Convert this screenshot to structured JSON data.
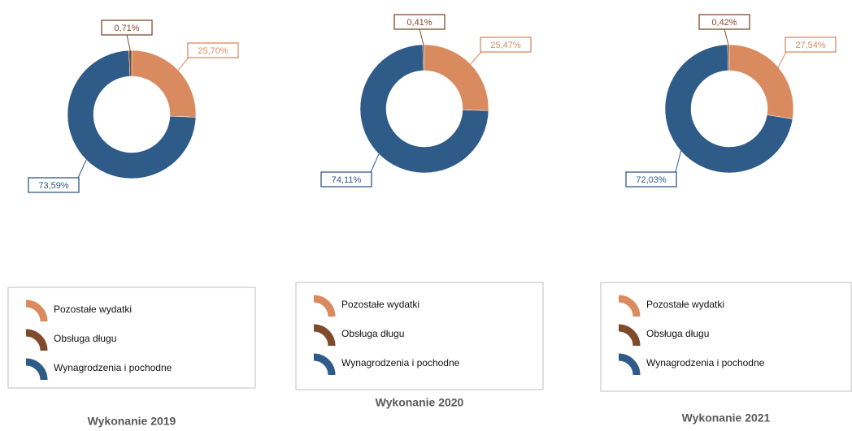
{
  "chart_data": [
    {
      "type": "pie",
      "title": "Wykonanie 2019",
      "categories": [
        "Pozostałe wydatki",
        "Obsługa długu",
        "Wynagrodzenia i pochodne"
      ],
      "values": [
        25.7,
        0.71,
        73.59
      ],
      "value_labels": [
        "25,70%",
        "0,71%",
        "73,59%"
      ],
      "colors": [
        "#d98b5f",
        "#7f4b2c",
        "#2f5b88"
      ]
    },
    {
      "type": "pie",
      "title": "Wykonanie 2020",
      "categories": [
        "Pozostałe wydatki",
        "Obsługa długu",
        "Wynagrodzenia i pochodne"
      ],
      "values": [
        25.47,
        0.41,
        74.11
      ],
      "value_labels": [
        "25,47%",
        "0,41%",
        "74,11%"
      ],
      "colors": [
        "#d98b5f",
        "#7f4b2c",
        "#2f5b88"
      ]
    },
    {
      "type": "pie",
      "title": "Wykonanie 2021",
      "categories": [
        "Pozostałe wydatki",
        "Obsługa długu",
        "Wynagrodzenia i pochodne"
      ],
      "values": [
        27.54,
        0.42,
        72.03
      ],
      "value_labels": [
        "27,54%",
        "0,42%",
        "72,03%"
      ],
      "colors": [
        "#d98b5f",
        "#7f4b2c",
        "#2f5b88"
      ]
    }
  ]
}
